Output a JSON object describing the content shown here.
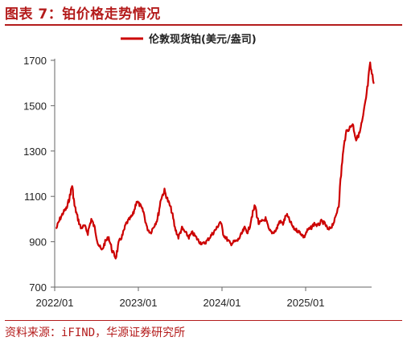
{
  "figure": {
    "title": "图表 7：铂价格走势情况",
    "source": "资料来源：iFIND，华源证券研究所"
  },
  "colors": {
    "accent": "#b41c1c",
    "series": "#cc0000",
    "axis": "#666666"
  },
  "chart_data": {
    "type": "line",
    "title": "",
    "xlabel": "",
    "ylabel": "",
    "ylim": [
      700,
      1700
    ],
    "yticks": [
      700,
      900,
      1100,
      1300,
      1500,
      1700
    ],
    "xticks": [
      "2022/01",
      "2023/01",
      "2024/01",
      "2025/01"
    ],
    "xlim": [
      "2022/01",
      "2025/10"
    ],
    "grid": false,
    "legend_position": "top-center",
    "series": [
      {
        "name": "伦敦现货铂(美元/盎司)",
        "points": [
          [
            "2022/01",
            960
          ],
          [
            "2022/01",
            1000
          ],
          [
            "2022/02",
            1030
          ],
          [
            "2022/02",
            1050
          ],
          [
            "2022/03",
            1100
          ],
          [
            "2022/03",
            1150
          ],
          [
            "2022/03",
            1060
          ],
          [
            "2022/04",
            1010
          ],
          [
            "2022/04",
            960
          ],
          [
            "2022/05",
            970
          ],
          [
            "2022/05",
            940
          ],
          [
            "2022/06",
            1000
          ],
          [
            "2022/06",
            960
          ],
          [
            "2022/07",
            890
          ],
          [
            "2022/07",
            860
          ],
          [
            "2022/08",
            900
          ],
          [
            "2022/08",
            920
          ],
          [
            "2022/09",
            860
          ],
          [
            "2022/09",
            830
          ],
          [
            "2022/10",
            900
          ],
          [
            "2022/10",
            930
          ],
          [
            "2022/11",
            980
          ],
          [
            "2022/11",
            1000
          ],
          [
            "2022/12",
            1020
          ],
          [
            "2022/12",
            1080
          ],
          [
            "2023/01",
            1060
          ],
          [
            "2023/01",
            1030
          ],
          [
            "2023/02",
            960
          ],
          [
            "2023/02",
            940
          ],
          [
            "2023/03",
            970
          ],
          [
            "2023/03",
            1000
          ],
          [
            "2023/04",
            1090
          ],
          [
            "2023/04",
            1125
          ],
          [
            "2023/05",
            1080
          ],
          [
            "2023/05",
            1040
          ],
          [
            "2023/06",
            960
          ],
          [
            "2023/06",
            920
          ],
          [
            "2023/07",
            960
          ],
          [
            "2023/07",
            940
          ],
          [
            "2023/08",
            920
          ],
          [
            "2023/08",
            940
          ],
          [
            "2023/09",
            920
          ],
          [
            "2023/09",
            900
          ],
          [
            "2023/10",
            890
          ],
          [
            "2023/10",
            900
          ],
          [
            "2023/11",
            920
          ],
          [
            "2023/11",
            940
          ],
          [
            "2023/12",
            960
          ],
          [
            "2023/12",
            990
          ],
          [
            "2024/01",
            930
          ],
          [
            "2024/01",
            910
          ],
          [
            "2024/02",
            890
          ],
          [
            "2024/02",
            900
          ],
          [
            "2024/03",
            905
          ],
          [
            "2024/03",
            930
          ],
          [
            "2024/04",
            960
          ],
          [
            "2024/04",
            940
          ],
          [
            "2024/05",
            1010
          ],
          [
            "2024/05",
            1060
          ],
          [
            "2024/06",
            980
          ],
          [
            "2024/06",
            990
          ],
          [
            "2024/07",
            1000
          ],
          [
            "2024/07",
            950
          ],
          [
            "2024/08",
            940
          ],
          [
            "2024/08",
            950
          ],
          [
            "2024/09",
            990
          ],
          [
            "2024/09",
            980
          ],
          [
            "2024/10",
            1020
          ],
          [
            "2024/10",
            990
          ],
          [
            "2024/11",
            960
          ],
          [
            "2024/11",
            950
          ],
          [
            "2024/12",
            940
          ],
          [
            "2024/12",
            920
          ],
          [
            "2025/01",
            950
          ],
          [
            "2025/01",
            960
          ],
          [
            "2025/02",
            980
          ],
          [
            "2025/02",
            970
          ],
          [
            "2025/03",
            990
          ],
          [
            "2025/03",
            980
          ],
          [
            "2025/04",
            950
          ],
          [
            "2025/04",
            970
          ],
          [
            "2025/05",
            1000
          ],
          [
            "2025/05",
            1070
          ],
          [
            "2025/06",
            1260
          ],
          [
            "2025/06",
            1380
          ],
          [
            "2025/07",
            1400
          ],
          [
            "2025/07",
            1420
          ],
          [
            "2025/08",
            1350
          ],
          [
            "2025/08",
            1380
          ],
          [
            "2025/09",
            1450
          ],
          [
            "2025/09",
            1550
          ],
          [
            "2025/10",
            1680
          ],
          [
            "2025/10",
            1600
          ]
        ]
      }
    ]
  }
}
